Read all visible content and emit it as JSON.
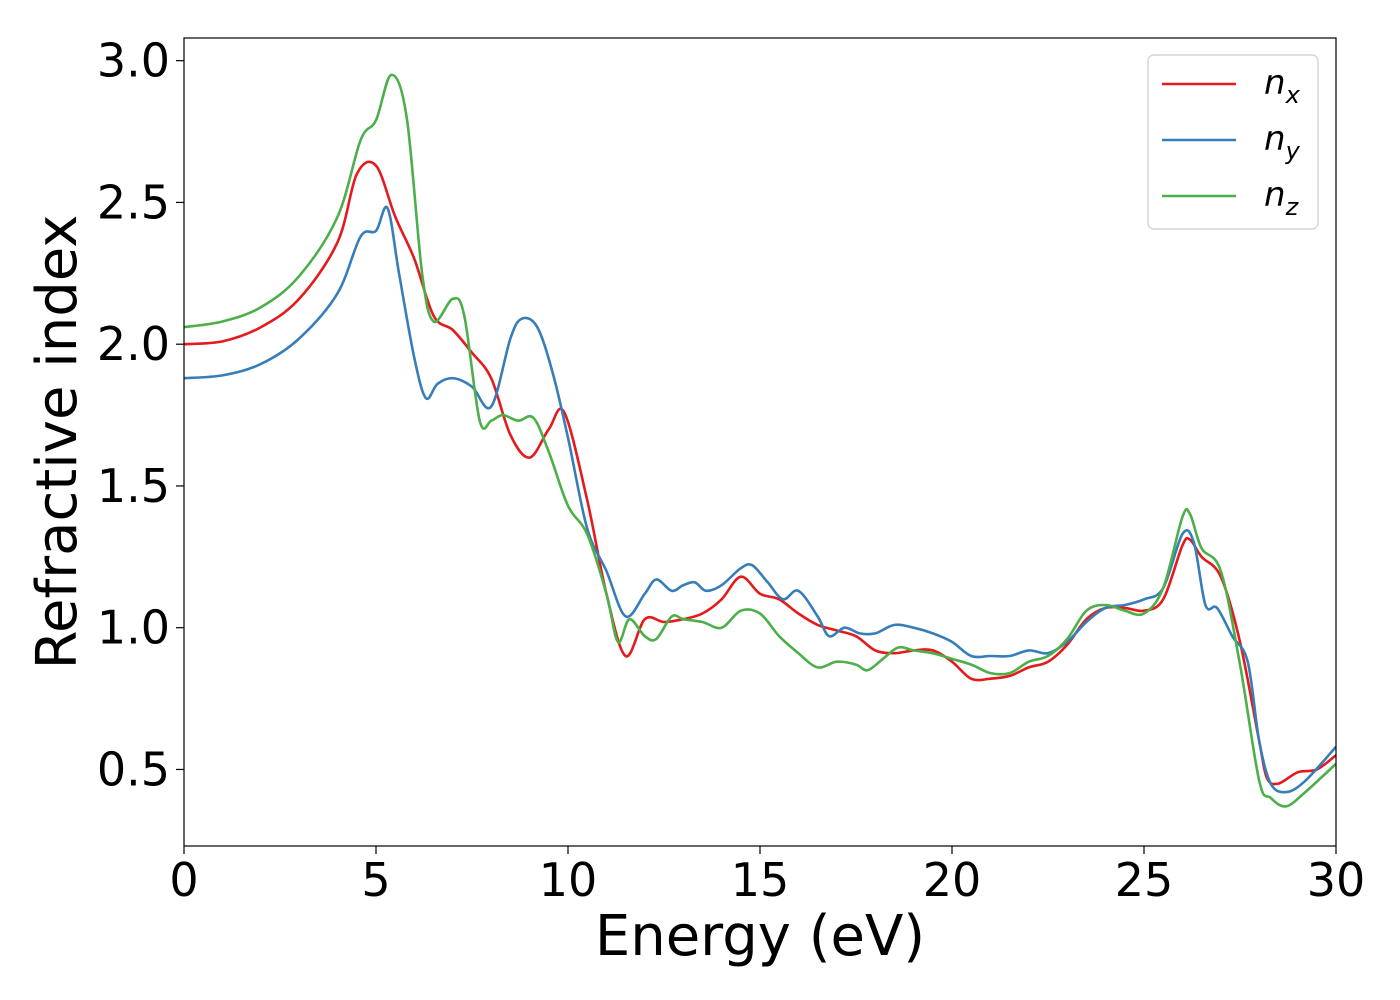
{
  "chart_data": {
    "type": "line",
    "xlabel": "Energy (eV)",
    "ylabel": "Refractive index",
    "xlim": [
      0,
      30
    ],
    "ylim": [
      0.23,
      3.08
    ],
    "xticks": [
      0,
      5,
      10,
      15,
      20,
      25,
      30
    ],
    "xtick_labels": [
      "0",
      "5",
      "10",
      "15",
      "20",
      "25",
      "30"
    ],
    "yticks": [
      0.5,
      1.0,
      1.5,
      2.0,
      2.5,
      3.0
    ],
    "ytick_labels": [
      "0.5",
      "1.0",
      "1.5",
      "2.0",
      "2.5",
      "3.0"
    ],
    "grid": false,
    "legend_position": "top-right",
    "series": [
      {
        "name": "n_x",
        "label_base": "n",
        "label_sub": "x",
        "color": "#e41a1c",
        "points": [
          [
            0,
            2.0
          ],
          [
            1,
            2.01
          ],
          [
            2,
            2.06
          ],
          [
            3,
            2.16
          ],
          [
            4,
            2.36
          ],
          [
            4.5,
            2.6
          ],
          [
            5,
            2.63
          ],
          [
            5.5,
            2.45
          ],
          [
            6,
            2.3
          ],
          [
            6.5,
            2.1
          ],
          [
            7,
            2.05
          ],
          [
            7.5,
            1.97
          ],
          [
            8,
            1.88
          ],
          [
            8.5,
            1.68
          ],
          [
            9,
            1.6
          ],
          [
            9.5,
            1.7
          ],
          [
            9.9,
            1.76
          ],
          [
            10.5,
            1.45
          ],
          [
            11,
            1.12
          ],
          [
            11.5,
            0.9
          ],
          [
            12,
            1.03
          ],
          [
            12.5,
            1.02
          ],
          [
            13,
            1.03
          ],
          [
            13.5,
            1.05
          ],
          [
            14,
            1.1
          ],
          [
            14.5,
            1.18
          ],
          [
            15,
            1.12
          ],
          [
            15.5,
            1.1
          ],
          [
            16,
            1.05
          ],
          [
            16.5,
            1.01
          ],
          [
            17,
            0.99
          ],
          [
            17.5,
            0.97
          ],
          [
            18,
            0.92
          ],
          [
            18.5,
            0.91
          ],
          [
            19,
            0.92
          ],
          [
            19.5,
            0.92
          ],
          [
            20,
            0.88
          ],
          [
            20.5,
            0.82
          ],
          [
            21,
            0.82
          ],
          [
            21.5,
            0.83
          ],
          [
            22,
            0.86
          ],
          [
            22.5,
            0.88
          ],
          [
            23,
            0.94
          ],
          [
            23.5,
            1.03
          ],
          [
            24,
            1.07
          ],
          [
            24.5,
            1.07
          ],
          [
            25,
            1.06
          ],
          [
            25.5,
            1.1
          ],
          [
            26,
            1.29
          ],
          [
            26.2,
            1.31
          ],
          [
            26.5,
            1.25
          ],
          [
            27,
            1.18
          ],
          [
            27.5,
            0.95
          ],
          [
            28,
            0.6
          ],
          [
            28.2,
            0.47
          ],
          [
            28.5,
            0.45
          ],
          [
            29,
            0.49
          ],
          [
            29.5,
            0.5
          ],
          [
            30,
            0.55
          ]
        ]
      },
      {
        "name": "n_y",
        "label_base": "n",
        "label_sub": "y",
        "color": "#377eb8",
        "points": [
          [
            0,
            1.88
          ],
          [
            1,
            1.89
          ],
          [
            2,
            1.93
          ],
          [
            3,
            2.02
          ],
          [
            4,
            2.18
          ],
          [
            4.6,
            2.38
          ],
          [
            5,
            2.4
          ],
          [
            5.3,
            2.48
          ],
          [
            5.6,
            2.25
          ],
          [
            6,
            1.95
          ],
          [
            6.3,
            1.81
          ],
          [
            6.6,
            1.86
          ],
          [
            7,
            1.88
          ],
          [
            7.5,
            1.85
          ],
          [
            8,
            1.78
          ],
          [
            8.5,
            2.02
          ],
          [
            8.8,
            2.09
          ],
          [
            9.2,
            2.06
          ],
          [
            9.6,
            1.9
          ],
          [
            10,
            1.67
          ],
          [
            10.5,
            1.35
          ],
          [
            11,
            1.2
          ],
          [
            11.5,
            1.04
          ],
          [
            12,
            1.12
          ],
          [
            12.3,
            1.17
          ],
          [
            12.7,
            1.13
          ],
          [
            13,
            1.15
          ],
          [
            13.3,
            1.16
          ],
          [
            13.6,
            1.13
          ],
          [
            14,
            1.15
          ],
          [
            14.5,
            1.21
          ],
          [
            14.8,
            1.22
          ],
          [
            15.2,
            1.16
          ],
          [
            15.6,
            1.1
          ],
          [
            16,
            1.13
          ],
          [
            16.5,
            1.04
          ],
          [
            16.8,
            0.97
          ],
          [
            17.2,
            1.0
          ],
          [
            17.6,
            0.98
          ],
          [
            18,
            0.98
          ],
          [
            18.5,
            1.01
          ],
          [
            19,
            1.0
          ],
          [
            19.5,
            0.98
          ],
          [
            20,
            0.95
          ],
          [
            20.5,
            0.9
          ],
          [
            21,
            0.9
          ],
          [
            21.5,
            0.9
          ],
          [
            22,
            0.92
          ],
          [
            22.5,
            0.91
          ],
          [
            23,
            0.95
          ],
          [
            23.5,
            1.02
          ],
          [
            24,
            1.07
          ],
          [
            24.5,
            1.08
          ],
          [
            25,
            1.1
          ],
          [
            25.5,
            1.14
          ],
          [
            26,
            1.33
          ],
          [
            26.3,
            1.3
          ],
          [
            26.6,
            1.08
          ],
          [
            26.9,
            1.07
          ],
          [
            27.3,
            0.97
          ],
          [
            27.7,
            0.88
          ],
          [
            28,
            0.6
          ],
          [
            28.3,
            0.45
          ],
          [
            28.7,
            0.42
          ],
          [
            29.2,
            0.46
          ],
          [
            30,
            0.58
          ]
        ]
      },
      {
        "name": "n_z",
        "label_base": "n",
        "label_sub": "z",
        "color": "#4daf4a",
        "points": [
          [
            0,
            2.06
          ],
          [
            1,
            2.08
          ],
          [
            2,
            2.13
          ],
          [
            3,
            2.24
          ],
          [
            4,
            2.45
          ],
          [
            4.6,
            2.72
          ],
          [
            5,
            2.79
          ],
          [
            5.4,
            2.95
          ],
          [
            5.8,
            2.8
          ],
          [
            6.2,
            2.25
          ],
          [
            6.5,
            2.08
          ],
          [
            7,
            2.16
          ],
          [
            7.3,
            2.1
          ],
          [
            7.7,
            1.73
          ],
          [
            8,
            1.73
          ],
          [
            8.3,
            1.75
          ],
          [
            8.7,
            1.73
          ],
          [
            9.1,
            1.74
          ],
          [
            9.5,
            1.62
          ],
          [
            10,
            1.43
          ],
          [
            10.5,
            1.33
          ],
          [
            11,
            1.12
          ],
          [
            11.3,
            0.95
          ],
          [
            11.6,
            1.03
          ],
          [
            12,
            0.97
          ],
          [
            12.3,
            0.96
          ],
          [
            12.7,
            1.04
          ],
          [
            13,
            1.03
          ],
          [
            13.5,
            1.02
          ],
          [
            14,
            1.0
          ],
          [
            14.5,
            1.06
          ],
          [
            15,
            1.05
          ],
          [
            15.5,
            0.97
          ],
          [
            16,
            0.91
          ],
          [
            16.5,
            0.86
          ],
          [
            17,
            0.88
          ],
          [
            17.5,
            0.87
          ],
          [
            17.8,
            0.85
          ],
          [
            18.2,
            0.89
          ],
          [
            18.6,
            0.93
          ],
          [
            19,
            0.92
          ],
          [
            19.5,
            0.91
          ],
          [
            20,
            0.89
          ],
          [
            20.5,
            0.87
          ],
          [
            21,
            0.84
          ],
          [
            21.5,
            0.84
          ],
          [
            22,
            0.88
          ],
          [
            22.5,
            0.9
          ],
          [
            23,
            0.96
          ],
          [
            23.5,
            1.06
          ],
          [
            24,
            1.08
          ],
          [
            24.5,
            1.06
          ],
          [
            25,
            1.05
          ],
          [
            25.5,
            1.14
          ],
          [
            26,
            1.39
          ],
          [
            26.2,
            1.4
          ],
          [
            26.5,
            1.28
          ],
          [
            27,
            1.2
          ],
          [
            27.5,
            0.87
          ],
          [
            28,
            0.46
          ],
          [
            28.3,
            0.4
          ],
          [
            28.7,
            0.37
          ],
          [
            29.2,
            0.42
          ],
          [
            30,
            0.52
          ]
        ]
      }
    ]
  }
}
